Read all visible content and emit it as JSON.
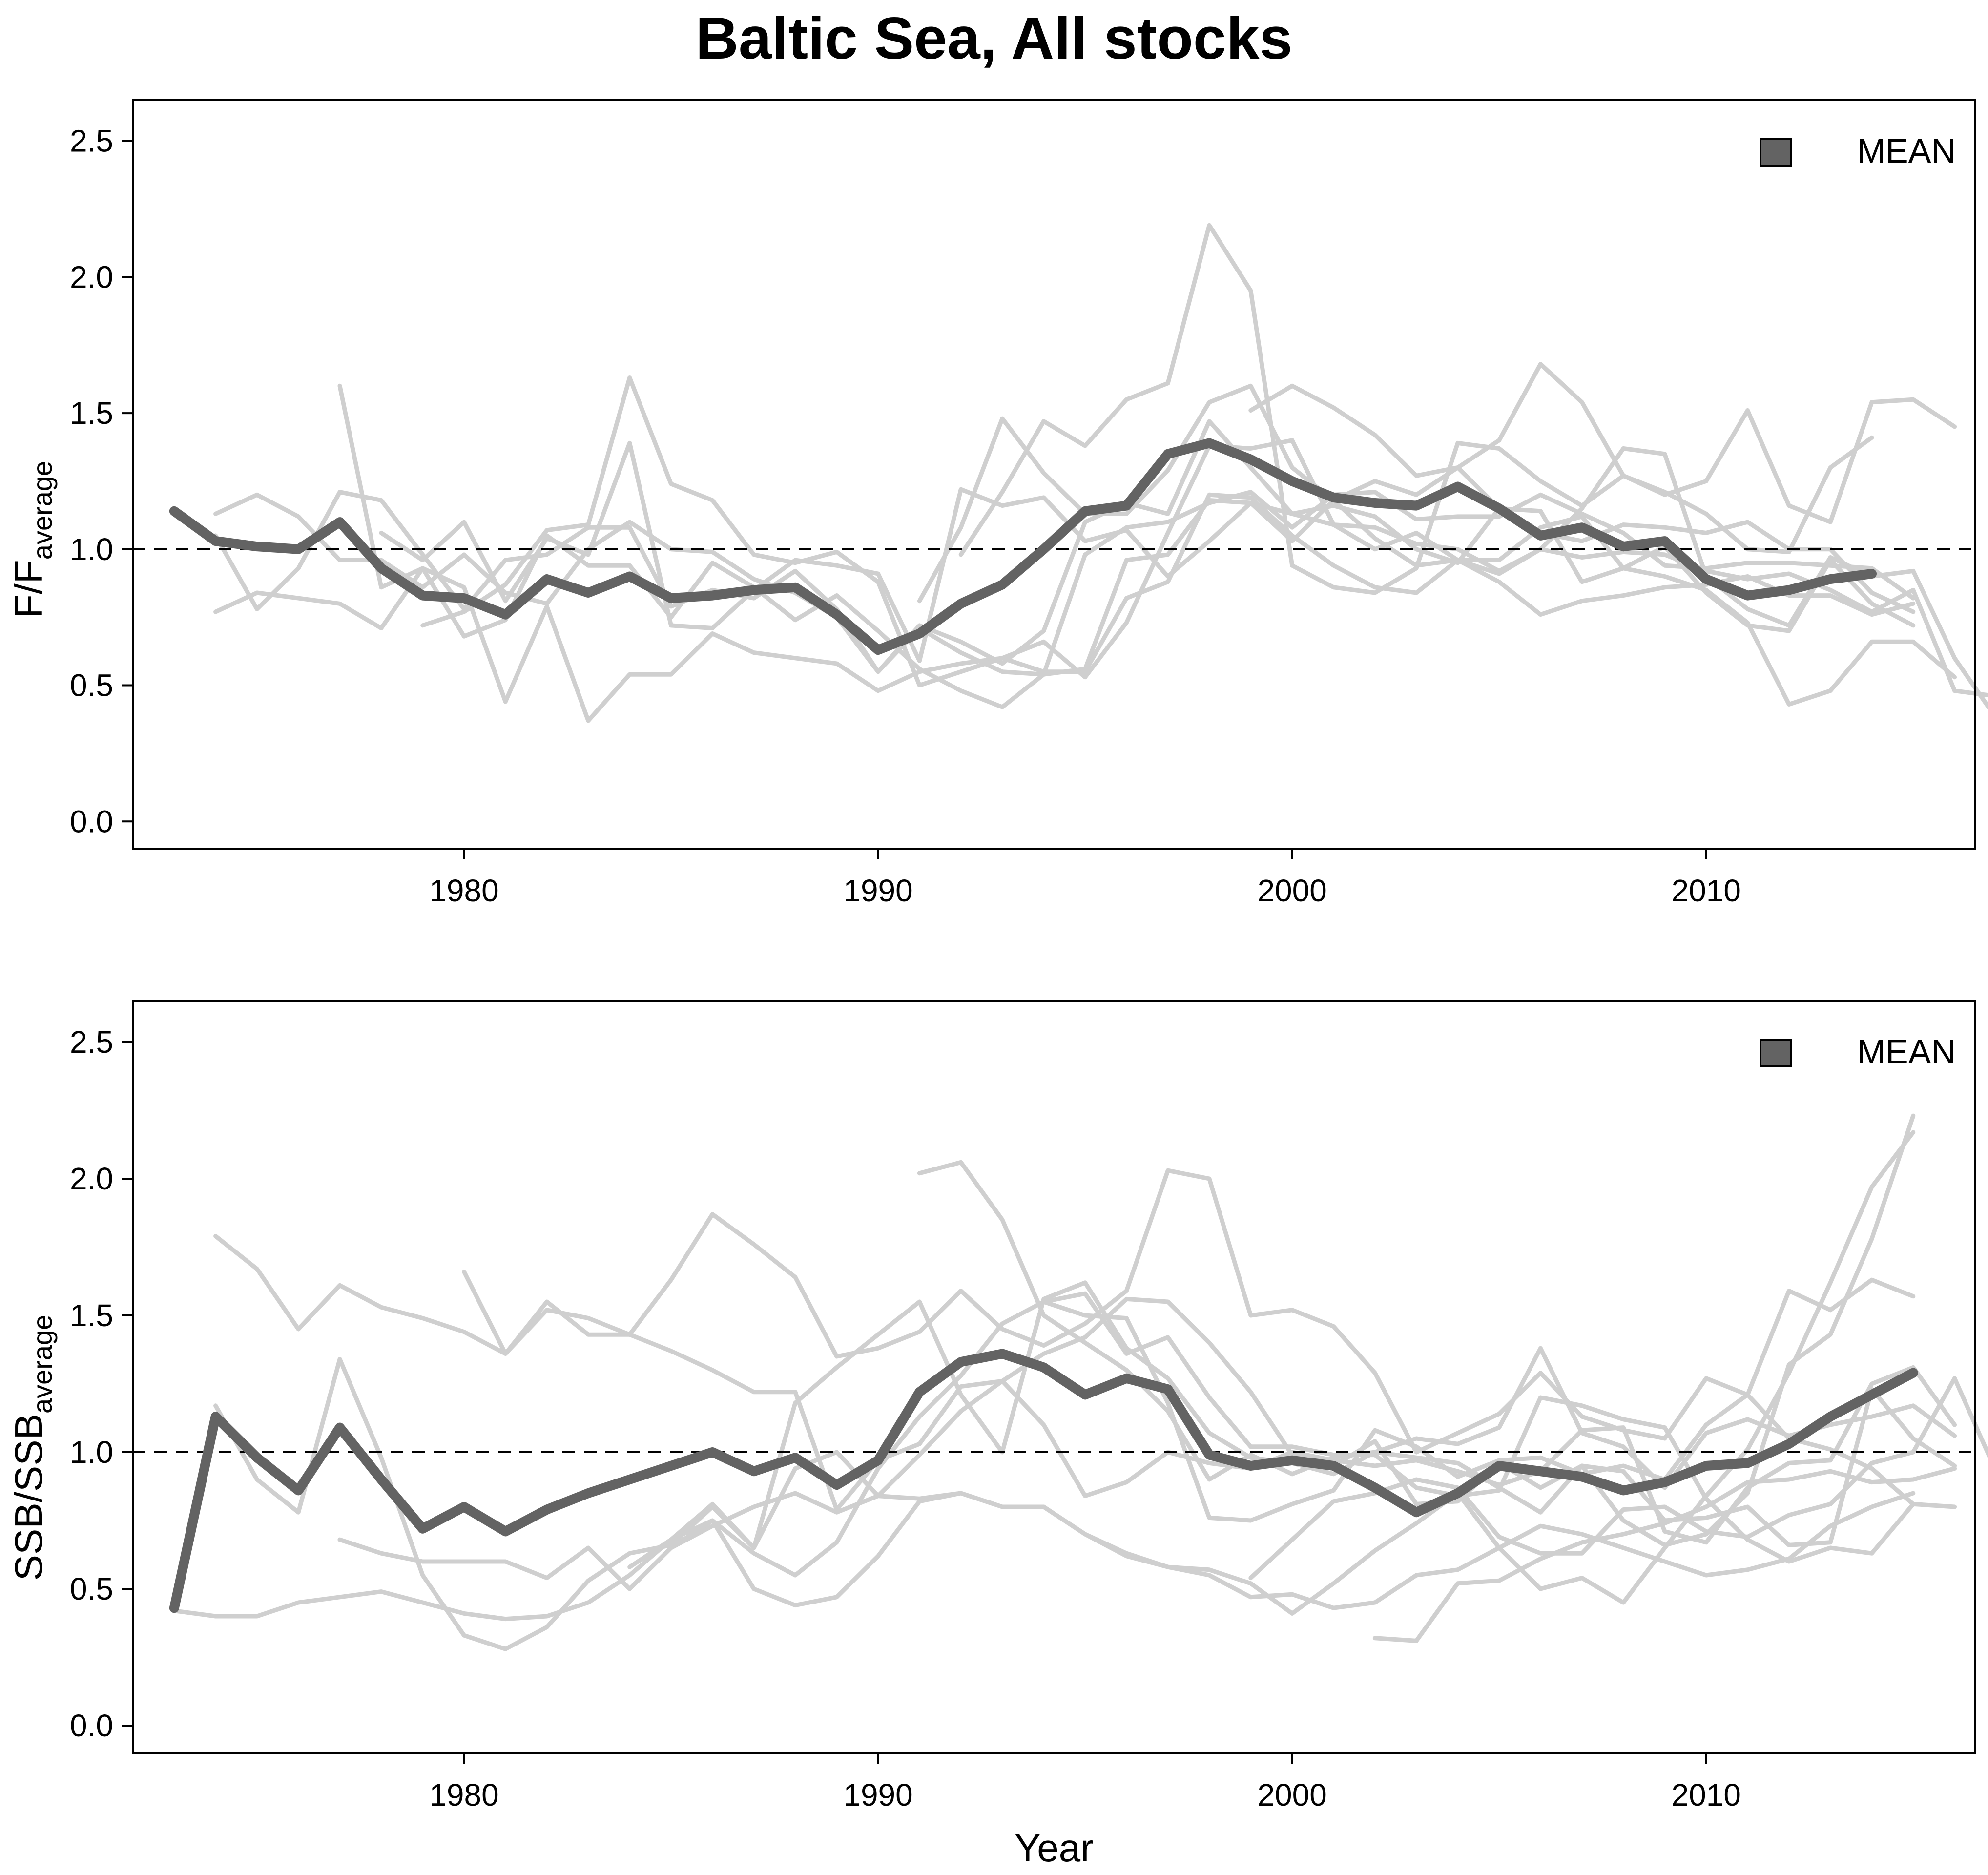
{
  "title": "Baltic Sea, All stocks",
  "colors": {
    "mean": "#636363",
    "stocks": "#cfcfcf",
    "reference": "#000000"
  },
  "chart_data": [
    {
      "type": "line",
      "xlabel": "Year",
      "ylabel_main": "F/F",
      "ylabel_sub": "average",
      "xlim": [
        1972,
        2016.5
      ],
      "ylim": [
        -0.1,
        2.65
      ],
      "xticks": [
        "1980",
        "1990",
        "2000",
        "2010"
      ],
      "yticks": [
        "0.0",
        "0.5",
        "1.0",
        "1.5",
        "2.0",
        "2.5"
      ],
      "legend": {
        "label": "MEAN",
        "position": "top-right"
      },
      "reference_line": 1.0,
      "mean": {
        "name": "MEAN",
        "x0": 1973,
        "values": [
          1.14,
          1.03,
          1.01,
          1.0,
          1.1,
          0.93,
          0.83,
          0.82,
          0.76,
          0.89,
          0.84,
          0.9,
          0.82,
          0.83,
          0.85,
          0.86,
          0.76,
          0.63,
          0.69,
          0.8,
          0.87,
          1.0,
          1.14,
          1.16,
          1.35,
          1.39,
          1.33,
          1.25,
          1.19,
          1.17,
          1.16,
          1.23,
          1.15,
          1.05,
          1.08,
          1.01,
          1.03,
          0.89,
          0.83,
          0.85,
          0.89,
          0.91
        ]
      },
      "stocks": [
        {
          "x0": 1974,
          "values": [
            1.13,
            1.2,
            1.12,
            0.96,
            0.96,
            0.86,
            0.98,
            0.84,
            0.8,
            1.0,
            1.1,
            1.0,
            0.99,
            0.89,
            0.84,
            0.75,
            0.55,
            0.72,
            0.66,
            0.58,
            0.7,
            1.1,
            1.17,
            1.13,
            1.47,
            1.3,
            1.13,
            1.16,
            1.12,
            1.0,
            0.95,
            1.15,
            1.14,
            0.88,
            0.93,
            1.01,
            0.84,
            0.72,
            0.7,
            0.96,
            0.8,
            0.72
          ]
        },
        {
          "x0": 1974,
          "values": [
            0.77,
            0.84,
            0.82,
            0.8,
            0.71,
            0.93,
            0.68,
            0.74,
            1.05,
            0.94,
            0.94,
            0.75,
            0.95,
            0.86,
            0.74,
            0.83,
            0.7,
            0.56,
            0.48,
            0.42,
            0.54,
            0.56,
            0.96,
            0.98,
            1.18,
            1.17,
            1.03,
            1.18,
            1.04,
            0.94,
            0.96,
            0.88,
            0.76,
            0.81,
            0.83,
            0.86,
            0.87,
            0.9,
            0.83,
            0.83,
            0.76,
            0.8
          ]
        },
        {
          "x0": 1974,
          "values": [
            1.05,
            0.78,
            0.93,
            1.21,
            1.18,
            0.98,
            0.78,
            0.96,
            0.98,
            1.08,
            1.08,
            0.79,
            0.85,
            0.82,
            0.92,
            0.78,
            0.55,
            0.71,
            0.62,
            0.55,
            0.54,
            0.98,
            1.08,
            1.1,
            1.17,
            1.21,
            1.08,
            1.2,
            1.21,
            1.11,
            1.12,
            1.12,
            1.2,
            1.13,
            1.06,
            0.94,
            0.93,
            0.95,
            0.95,
            0.94,
            0.93,
            0.82
          ]
        },
        {
          "x0": 1977,
          "values": [
            1.6,
            0.86,
            0.93,
            0.86,
            0.44,
            0.79,
            0.37,
            0.54,
            0.54,
            0.69,
            0.62,
            0.6,
            0.58,
            0.48,
            0.55,
            0.58,
            0.6,
            0.55,
            0.55,
            0.82,
            0.88,
            1.2,
            1.19,
            1.05,
            0.94,
            0.86,
            0.84,
            0.96,
            0.96,
            1.08,
            1.12,
            0.93,
            0.9,
            0.85,
            0.73,
            0.43,
            0.48,
            0.66,
            0.66,
            0.53
          ]
        },
        {
          "x0": 1978,
          "values": [
            1.06,
            0.96,
            1.1,
            0.81,
            1.04,
            0.98,
            1.39,
            0.72,
            0.71,
            0.85,
            0.96,
            0.94,
            0.91,
            0.59,
            1.22,
            1.16,
            1.19,
            1.03,
            1.07,
            0.9,
            1.03,
            1.17,
            1.13,
            1.09,
            1.08,
            1.02,
            1.0,
            0.92,
            1.0,
            0.97,
            0.99,
            0.98,
            0.92,
            0.89,
            0.91,
            0.85,
            0.77,
            0.85,
            0.48,
            0.46,
            0.67
          ]
        },
        {
          "x0": 1979,
          "values": [
            0.72,
            0.77,
            0.87,
            1.07,
            1.09,
            1.63,
            1.24,
            1.18,
            0.98,
            0.95,
            0.99,
            0.88,
            0.5,
            0.55,
            0.6,
            0.66,
            0.53,
            0.73,
            1.06,
            1.38,
            1.37,
            1.4,
            1.09,
            1.0,
            1.06,
            0.96,
            0.91,
            1.0,
            1.15,
            1.37,
            1.35,
            0.9,
            0.78,
            0.72,
            0.97,
            0.9,
            0.92,
            0.6,
            0.38,
            0.33,
            0.31
          ]
        },
        {
          "x0": 1991,
          "values": [
            0.81,
            1.08,
            1.48,
            1.28,
            1.13,
            1.13,
            1.29,
            1.54,
            1.6,
            1.3,
            1.18,
            1.25,
            1.2,
            1.3,
            1.4,
            1.68,
            1.54,
            1.27,
            1.2,
            1.25,
            1.51,
            1.16,
            1.1,
            1.54,
            1.55,
            1.45
          ]
        },
        {
          "x0": 1992,
          "values": [
            0.98,
            1.21,
            1.47,
            1.38,
            1.55,
            1.61,
            2.19,
            1.95,
            0.94,
            0.86,
            0.84,
            0.93,
            1.39,
            1.37,
            1.25,
            1.16,
            1.27,
            1.21,
            1.13,
            1.0,
            0.99,
            1.3,
            1.41
          ]
        },
        {
          "x0": 1999,
          "values": [
            1.51,
            1.6,
            1.52,
            1.42,
            1.27,
            1.3,
            1.15,
            1.06,
            1.03,
            1.09,
            1.08,
            1.06,
            1.1,
            1.0,
            1.0,
            0.84,
            0.77
          ]
        }
      ]
    },
    {
      "type": "line",
      "xlabel": "Year",
      "ylabel_main": "SSB/SSB",
      "ylabel_sub": "average",
      "xlim": [
        1972,
        2016.5
      ],
      "ylim": [
        -0.1,
        2.65
      ],
      "xticks": [
        "1980",
        "1990",
        "2000",
        "2010"
      ],
      "yticks": [
        "0.0",
        "0.5",
        "1.0",
        "1.5",
        "2.0",
        "2.5"
      ],
      "legend": {
        "label": "MEAN",
        "position": "top-right"
      },
      "reference_line": 1.0,
      "mean": {
        "name": "MEAN",
        "x0": 1973,
        "values": [
          0.43,
          1.13,
          0.98,
          0.86,
          1.09,
          0.9,
          0.72,
          0.8,
          0.71,
          0.79,
          0.85,
          0.9,
          0.95,
          1.0,
          0.93,
          0.98,
          0.88,
          0.97,
          1.22,
          1.33,
          1.36,
          1.31,
          1.21,
          1.27,
          1.23,
          0.99,
          0.95,
          0.97,
          0.95,
          0.87,
          0.78,
          0.85,
          0.95,
          0.93,
          0.91,
          0.86,
          0.89,
          0.95,
          0.96,
          1.03,
          1.13,
          1.21,
          1.29
        ]
      },
      "stocks": [
        {
          "x0": 1974,
          "values": [
            1.79,
            1.67,
            1.45,
            1.61,
            1.53,
            1.49,
            1.44,
            1.36,
            1.52,
            1.49,
            1.43,
            1.37,
            1.3,
            1.22,
            1.22,
            0.79,
            0.97,
            1.03,
            1.24,
            1.26,
            1.36,
            1.42,
            1.56,
            1.55,
            1.4,
            1.22,
            0.99,
            0.95,
            1.04,
            0.81,
            0.82,
            0.96,
            0.87,
            0.95,
            0.93,
            0.75,
            0.76,
            0.8,
            0.66,
            0.67,
            1.23,
            1.05,
            0.95
          ]
        },
        {
          "x0": 1973,
          "values": [
            0.42,
            0.4,
            0.4,
            0.45,
            0.47,
            0.49,
            0.45,
            0.41,
            0.39,
            0.4,
            0.45,
            0.55,
            0.68,
            0.75,
            0.63,
            0.55,
            0.67,
            0.94,
            1.13,
            1.28,
            1.47,
            1.55,
            1.5,
            1.49,
            1.18,
            0.76,
            0.75,
            0.81,
            0.86,
            1.08,
            1.02,
            0.91,
            0.97,
            0.98,
            0.92,
            0.95,
            0.9,
            1.1,
            1.21,
            1.59,
            1.52,
            1.63,
            1.57
          ]
        },
        {
          "x0": 1974,
          "values": [
            1.17,
            0.9,
            0.78,
            1.34,
            0.98,
            0.55,
            0.33,
            0.28,
            0.36,
            0.53,
            0.63,
            0.66,
            0.8,
            0.65,
            1.18,
            1.31,
            1.43,
            1.55,
            1.21,
            1.0,
            1.56,
            1.62,
            1.38,
            1.27,
            1.07,
            0.98,
            0.96,
            0.92,
            1.0,
            1.05,
            1.03,
            1.09,
            1.38,
            1.07,
            1.02,
            0.87,
            1.07,
            1.12,
            1.06,
            1.1,
            1.13,
            1.17,
            1.06
          ]
        },
        {
          "x0": 1977,
          "values": [
            0.68,
            0.63,
            0.6,
            0.6,
            0.6,
            0.54,
            0.65,
            0.5,
            0.65,
            0.73,
            0.8,
            0.85,
            0.78,
            0.84,
            0.99,
            1.15,
            1.26,
            1.1,
            0.84,
            0.89,
            1.0,
            0.96,
            0.94,
            1.0,
            0.97,
            0.95,
            0.97,
            0.93,
            0.88,
            0.93,
            1.08,
            1.09,
            0.71,
            0.67,
            0.87,
            0.96,
            0.97,
            1.25,
            1.31,
            1.1
          ]
        },
        {
          "x0": 1980,
          "values": [
            1.66,
            1.36,
            1.55,
            1.43,
            1.43,
            1.63,
            1.87,
            1.76,
            1.64,
            1.35,
            1.38,
            1.44,
            1.59,
            1.45,
            1.39,
            1.47,
            1.59,
            2.03,
            2.0,
            1.5,
            1.52,
            1.46,
            1.29,
            1.0,
            1.07,
            1.14,
            1.29,
            1.13,
            1.08,
            1.05,
            1.27,
            1.21,
            1.05,
            1.01,
            0.94,
            0.81
          ]
        },
        {
          "x0": 1984,
          "values": [
            0.58,
            0.68,
            0.81,
            0.65,
            0.94,
            1.0,
            0.84,
            0.83,
            0.85,
            0.8,
            0.8,
            0.7,
            0.63,
            0.58,
            0.57,
            0.52,
            0.41,
            0.52,
            0.64,
            0.74,
            0.85,
            0.65,
            0.5,
            0.54,
            0.45,
            0.65,
            0.84,
            1.01,
            1.29,
            1.62,
            1.97,
            2.17
          ]
        },
        {
          "x0": 1985,
          "values": [
            0.65,
            0.75,
            0.5,
            0.44,
            0.47,
            0.62,
            0.82,
            0.85,
            0.8,
            0.8,
            0.7,
            0.62,
            0.58,
            0.55,
            0.47,
            0.48,
            0.43,
            0.45,
            0.55,
            0.57,
            0.65,
            0.73,
            0.7,
            0.65,
            0.6,
            0.55,
            0.57,
            0.61,
            0.73,
            0.8,
            0.85
          ]
        },
        {
          "x0": 1991,
          "values": [
            2.02,
            2.06,
            1.85,
            1.5,
            1.4,
            1.3,
            1.15,
            0.9,
            0.99,
            0.92,
            0.98,
            1.0,
            0.98,
            0.96,
            0.87,
            0.78,
            0.95,
            0.75,
            0.66,
            0.7,
            0.85,
            1.32,
            1.43,
            1.78,
            2.23
          ]
        },
        {
          "x0": 1994,
          "values": [
            1.55,
            1.58,
            1.36,
            1.42,
            1.2,
            1.02,
            1.02,
            0.99,
            0.99,
            0.87,
            0.84,
            0.86,
            1.2,
            1.17,
            1.12,
            1.09,
            0.83,
            0.68,
            0.6,
            0.65,
            0.63,
            0.81,
            0.8
          ]
        },
        {
          "x0": 1999,
          "values": [
            0.54,
            0.68,
            0.82,
            0.85,
            0.9,
            0.87,
            0.69,
            0.63,
            0.63,
            0.79,
            0.8,
            0.71,
            0.69,
            0.77,
            0.81,
            0.96,
            1.0,
            1.27,
            0.93
          ]
        },
        {
          "x0": 2002,
          "values": [
            0.32,
            0.31,
            0.52,
            0.53,
            0.61,
            0.67,
            0.7,
            0.74,
            0.8,
            0.89,
            0.9,
            0.93,
            0.89,
            0.9,
            0.94
          ]
        }
      ]
    }
  ]
}
